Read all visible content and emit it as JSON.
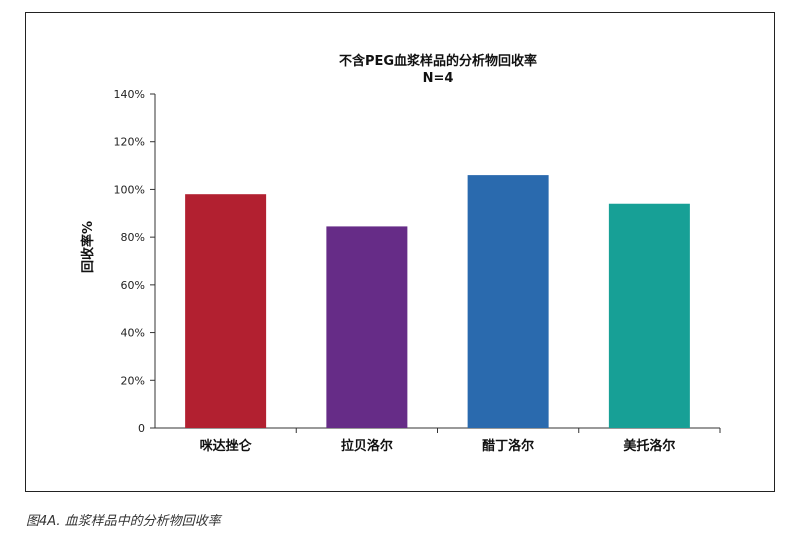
{
  "caption": "图4A. 血浆样品中的分析物回收率",
  "chart_data": {
    "type": "bar",
    "title": "不含PEG血浆样品的分析物回收率",
    "subtitle": "N=4",
    "xlabel": "",
    "ylabel": "回收率%",
    "categories": [
      "咪达挫仑",
      "拉贝洛尔",
      "醋丁洛尔",
      "美托洛尔"
    ],
    "values": [
      98,
      84.5,
      106,
      94
    ],
    "colors": [
      "#b22030",
      "#662c87",
      "#2a6aae",
      "#17a096"
    ],
    "ylim": [
      0,
      140
    ],
    "yticks": [
      0,
      20,
      40,
      60,
      80,
      100,
      120,
      140
    ],
    "ytick_labels": [
      "0",
      "20%",
      "40%",
      "60%",
      "80%",
      "100%",
      "120%",
      "140%"
    ],
    "grid": false,
    "legend": "none"
  }
}
